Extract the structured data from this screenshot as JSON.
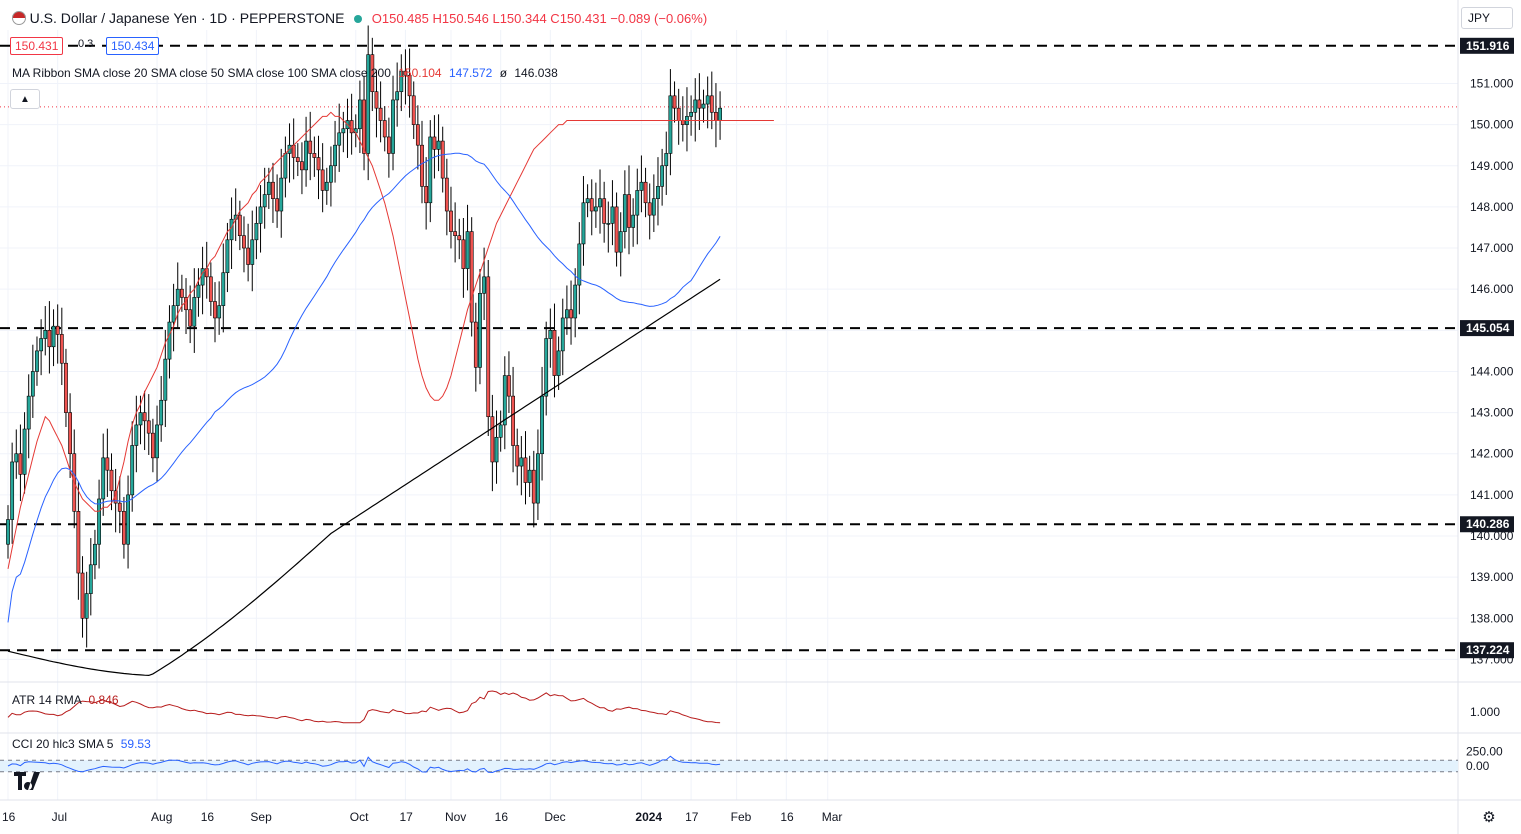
{
  "header": {
    "title": "U.S. Dollar / Japanese Yen · 1D · PEPPERSTONE",
    "ohlc": "O150.485 H150.546 L150.344 C150.431 −0.089 (−0.06%)",
    "bid": "150.431",
    "spread": "0.3",
    "ask": "150.434",
    "ma_label": "MA Ribbon SMA close 20 SMA close 50 SMA close 100 SMA close 200",
    "ma20": "150.104",
    "ma50": "147.572",
    "ma_sep": "ø",
    "ma200": "146.038",
    "currency": "JPY",
    "collapse_icon": "chevron-up-icon",
    "settings_icon": "gear-icon"
  },
  "colors": {
    "up": "#26a69a",
    "down": "#ef5350",
    "ma20": "#e53935",
    "ma50": "#2962ff",
    "ma200": "#000000",
    "atr": "#b71c1c",
    "cci": "#2962ff",
    "cci_band": "#e3f2fd"
  },
  "chart_data": {
    "type": "candlestick",
    "symbol": "USD/JPY",
    "timeframe": "1D",
    "ylim": [
      136.5,
      152.3
    ],
    "y_ticks": [
      "137.000",
      "138.000",
      "139.000",
      "140.000",
      "141.000",
      "142.000",
      "143.000",
      "144.000",
      "145.000",
      "146.000",
      "147.000",
      "148.000",
      "149.000",
      "150.000",
      "151.000"
    ],
    "x_ticks": [
      {
        "label": "16",
        "i": 0
      },
      {
        "label": "Jul",
        "i": 12
      },
      {
        "label": "Aug",
        "i": 36
      },
      {
        "label": "16",
        "i": 48
      },
      {
        "label": "Sep",
        "i": 60
      },
      {
        "label": "Oct",
        "i": 84
      },
      {
        "label": "17",
        "i": 96
      },
      {
        "label": "Nov",
        "i": 107
      },
      {
        "label": "16",
        "i": 119
      },
      {
        "label": "Dec",
        "i": 131
      },
      {
        "label": "2024",
        "i": 153
      },
      {
        "label": "17",
        "i": 165
      },
      {
        "label": "Feb",
        "i": 176
      },
      {
        "label": "16",
        "i": 188
      },
      {
        "label": "Mar",
        "i": 198
      }
    ],
    "levels": [
      151.916,
      145.054,
      140.286,
      137.224
    ],
    "current_price": 150.431,
    "closes": [
      140.4,
      141.8,
      142.0,
      141.5,
      142.6,
      143.4,
      144.0,
      144.5,
      144.8,
      145.0,
      144.6,
      145.1,
      144.9,
      144.2,
      143.0,
      142.0,
      140.6,
      139.1,
      138.0,
      138.6,
      139.3,
      139.8,
      140.9,
      141.9,
      141.6,
      141.1,
      140.8,
      140.6,
      139.8,
      141.0,
      142.2,
      142.7,
      143.0,
      142.8,
      142.5,
      141.9,
      142.7,
      143.3,
      144.3,
      145.2,
      145.6,
      146.0,
      145.8,
      145.5,
      145.1,
      145.8,
      146.1,
      146.5,
      146.3,
      145.7,
      145.3,
      145.6,
      146.4,
      147.2,
      147.7,
      147.8,
      147.3,
      147.0,
      146.6,
      147.2,
      147.6,
      148.0,
      148.3,
      148.6,
      148.2,
      147.9,
      148.7,
      149.3,
      149.5,
      149.2,
      149.1,
      148.9,
      149.6,
      149.3,
      149.2,
      148.9,
      148.4,
      148.6,
      149.0,
      149.5,
      149.8,
      149.9,
      150.1,
      149.8,
      149.9,
      150.6,
      149.3,
      151.7,
      150.8,
      150.4,
      150.1,
      149.7,
      149.3,
      150.6,
      150.8,
      151.3,
      151.2,
      150.7,
      150.0,
      149.5,
      148.5,
      148.1,
      149.7,
      149.4,
      149.6,
      148.7,
      147.9,
      147.4,
      147.3,
      147.2,
      146.5,
      147.4,
      145.2,
      144.1,
      145.9,
      146.3,
      142.9,
      141.8,
      142.4,
      142.7,
      143.9,
      143.4,
      142.2,
      141.7,
      141.9,
      141.3,
      141.6,
      140.8,
      142.0,
      143.4,
      144.8,
      145.0,
      143.9,
      144.5,
      145.3,
      145.5,
      145.3,
      146.1,
      147.1,
      148.1,
      148.2,
      147.9,
      148.0,
      148.2,
      147.6,
      147.6,
      148.0,
      146.9,
      147.4,
      148.3,
      147.5,
      147.8,
      148.4,
      148.6,
      148.1,
      147.8,
      148.2,
      148.5,
      149.0,
      149.3,
      150.7,
      150.4,
      150.1,
      150.0,
      150.2,
      150.3,
      150.6,
      150.4,
      150.5,
      150.7,
      150.3,
      150.1,
      150.4
    ],
    "ma20": [
      139.2,
      139.7,
      140.2,
      140.7,
      141.1,
      141.5,
      141.9,
      142.3,
      142.6,
      142.9,
      142.8,
      142.6,
      142.4,
      142.2,
      141.9,
      141.6,
      141.3,
      141.1,
      140.9,
      140.8,
      140.7,
      140.6,
      140.6,
      140.7,
      140.7,
      140.8,
      141.0,
      141.4,
      141.8,
      142.3,
      142.7,
      143.0,
      143.2,
      143.5,
      143.7,
      143.9,
      144.1,
      144.4,
      144.7,
      144.9,
      145.1,
      145.4,
      145.6,
      145.7,
      145.9,
      146.0,
      146.2,
      146.4,
      146.5,
      146.7,
      146.8,
      147.0,
      147.2,
      147.4,
      147.5,
      147.7,
      147.9,
      148.0,
      148.1,
      148.3,
      148.4,
      148.6,
      148.7,
      148.8,
      149.0,
      149.1,
      149.2,
      149.3,
      149.4,
      149.5,
      149.6,
      149.7,
      149.8,
      149.9,
      150.0,
      150.1,
      150.2,
      150.2,
      150.3,
      150.2,
      150.2,
      150.1,
      150.0,
      149.9,
      149.8,
      149.6,
      149.4,
      149.2,
      149.0,
      148.7,
      148.4,
      148.1,
      147.7,
      147.3,
      146.8,
      146.3,
      145.8,
      145.3,
      144.8,
      144.3,
      143.9,
      143.6,
      143.4,
      143.3,
      143.3,
      143.4,
      143.6,
      143.9,
      144.3,
      144.7,
      145.1,
      145.5,
      145.8,
      146.1,
      146.4,
      146.7,
      147.0,
      147.3,
      147.6,
      147.8,
      148.0,
      148.2,
      148.4,
      148.6,
      148.8,
      149.0,
      149.2,
      149.4,
      149.5,
      149.6,
      149.7,
      149.8,
      149.9,
      150.0,
      150.0,
      150.1,
      150.1,
      150.1,
      150.1,
      150.1,
      150.1,
      150.1,
      150.1,
      150.1,
      150.1,
      150.1,
      150.1,
      150.1,
      150.1,
      150.1,
      150.1,
      150.1,
      150.1,
      150.1,
      150.1,
      150.1,
      150.1,
      150.1,
      150.1,
      150.1,
      150.1,
      150.1,
      150.1,
      150.1,
      150.1,
      150.1,
      150.1,
      150.1,
      150.1,
      150.1,
      150.1,
      150.1,
      150.1,
      150.1,
      150.1,
      150.1,
      150.1,
      150.1,
      150.1,
      150.1,
      150.1,
      150.1,
      150.1,
      150.1,
      150.1,
      150.1
    ],
    "atr_last": 0.846,
    "atr_ticks": [
      "1.000"
    ],
    "cci_last": 59.53,
    "cci_ticks": [
      "250.00",
      "0.00"
    ]
  },
  "indicators": {
    "atr_label": "ATR 14 RMA",
    "atr_value": "0.846",
    "cci_label": "CCI 20 hlc3 SMA 5",
    "cci_value": "59.53"
  }
}
